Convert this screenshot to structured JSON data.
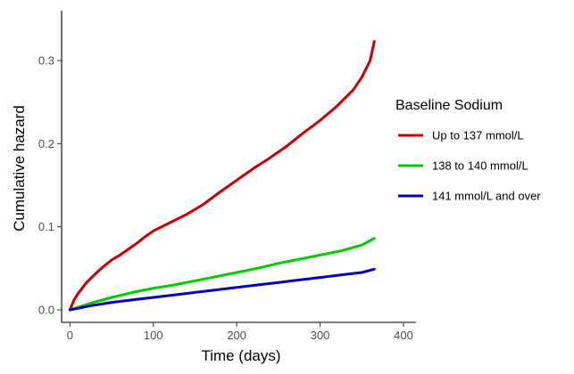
{
  "chart_data": {
    "type": "line",
    "title": "",
    "xlabel": "Time (days)",
    "ylabel": "Cumulative hazard",
    "xlim": [
      -10,
      415
    ],
    "ylim": [
      -0.015,
      0.36
    ],
    "x_ticks": [
      0,
      100,
      200,
      300,
      400
    ],
    "y_ticks": [
      0.0,
      0.1,
      0.2,
      0.3
    ],
    "x_tick_labels": [
      "0",
      "100",
      "200",
      "300",
      "400"
    ],
    "y_tick_labels": [
      "0.0",
      "0.1",
      "0.2",
      "0.3"
    ],
    "grid": false,
    "legend_position": "right",
    "legend_title": "Baseline Sodium",
    "series": [
      {
        "name": "Up to 137 mmol/L",
        "color": "#CC0000",
        "x": [
          0,
          5,
          10,
          20,
          30,
          40,
          50,
          60,
          70,
          80,
          90,
          100,
          120,
          140,
          160,
          180,
          200,
          220,
          240,
          260,
          280,
          300,
          320,
          340,
          350,
          360,
          365
        ],
        "y": [
          0.0,
          0.012,
          0.02,
          0.033,
          0.043,
          0.052,
          0.06,
          0.066,
          0.073,
          0.08,
          0.088,
          0.095,
          0.105,
          0.115,
          0.127,
          0.142,
          0.156,
          0.17,
          0.183,
          0.197,
          0.213,
          0.228,
          0.245,
          0.265,
          0.28,
          0.3,
          0.323
        ]
      },
      {
        "name": "138 to 140 mmol/L",
        "color": "#00CC00",
        "x": [
          0,
          25,
          50,
          75,
          100,
          125,
          150,
          175,
          200,
          225,
          250,
          275,
          300,
          325,
          350,
          365
        ],
        "y": [
          0.0,
          0.008,
          0.015,
          0.021,
          0.026,
          0.03,
          0.035,
          0.04,
          0.045,
          0.05,
          0.056,
          0.061,
          0.066,
          0.071,
          0.078,
          0.086
        ]
      },
      {
        "name": "141 mmol/L and over",
        "color": "#0000BB",
        "x": [
          0,
          25,
          50,
          75,
          100,
          125,
          150,
          175,
          200,
          225,
          250,
          275,
          300,
          325,
          350,
          365
        ],
        "y": [
          0.0,
          0.005,
          0.009,
          0.012,
          0.015,
          0.018,
          0.021,
          0.024,
          0.027,
          0.03,
          0.033,
          0.036,
          0.039,
          0.042,
          0.045,
          0.049
        ]
      }
    ]
  }
}
